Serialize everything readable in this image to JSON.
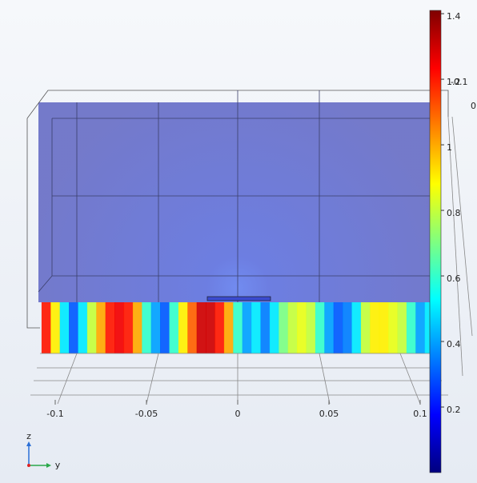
{
  "chart_data": {
    "type": "field-strip",
    "x": [
      -0.105,
      -0.1,
      -0.095,
      -0.09,
      -0.085,
      -0.08,
      -0.075,
      -0.07,
      -0.065,
      -0.06,
      -0.055,
      -0.05,
      -0.045,
      -0.04,
      -0.035,
      -0.03,
      -0.025,
      -0.02,
      -0.015,
      -0.01,
      -0.005,
      0,
      0.005,
      0.01,
      0.015,
      0.02,
      0.025,
      0.03,
      0.035,
      0.04,
      0.045,
      0.05,
      0.055,
      0.06,
      0.065,
      0.07,
      0.075,
      0.08,
      0.085,
      0.09,
      0.095,
      0.1,
      0.105
    ],
    "values": [
      1.2,
      0.9,
      0.5,
      0.3,
      0.5,
      0.8,
      1.0,
      1.2,
      1.25,
      1.2,
      1.0,
      0.6,
      0.4,
      0.3,
      0.6,
      0.9,
      1.1,
      1.3,
      1.3,
      1.2,
      1.0,
      0.6,
      0.4,
      0.5,
      0.35,
      0.5,
      0.7,
      0.8,
      0.85,
      0.8,
      0.6,
      0.4,
      0.3,
      0.35,
      0.5,
      0.8,
      0.9,
      0.9,
      0.85,
      0.8,
      0.6,
      0.4,
      0.5
    ],
    "xticks": [
      {
        "value": -0.1,
        "label": "-0.1"
      },
      {
        "value": -0.05,
        "label": "-0.05"
      },
      0,
      0.05,
      0.1
    ],
    "clim": [
      0,
      1.41
    ],
    "cticks": [
      0.2,
      0.4,
      0.6,
      0.8,
      1,
      1.2,
      1.4
    ],
    "colormap": "jet",
    "other_axis_labels": [
      "-0.1",
      "0"
    ],
    "triad_labels": [
      "z",
      "y"
    ]
  }
}
